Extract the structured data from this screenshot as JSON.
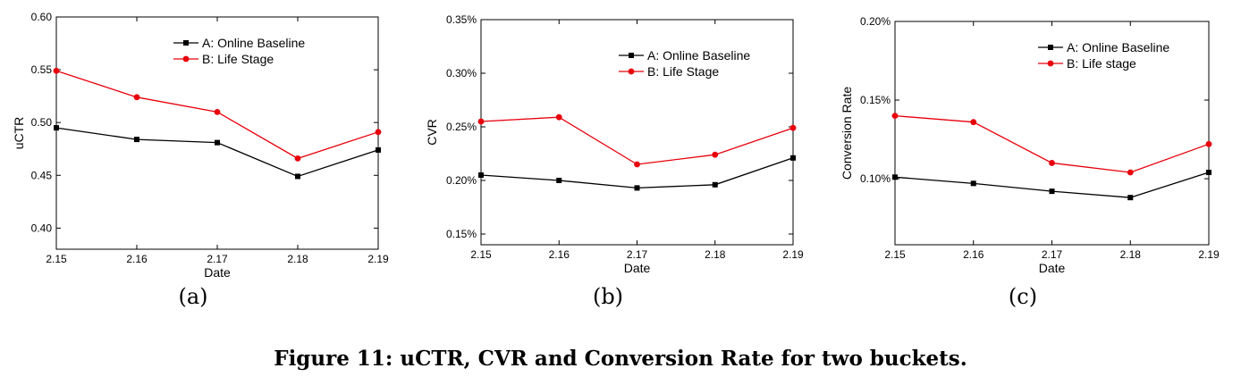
{
  "figure": {
    "caption": "Figure 11: uCTR, CVR and Conversion Rate for two buckets."
  },
  "chart_data": [
    {
      "type": "line",
      "sublabel": "(a)",
      "x": [
        "2.15",
        "2.16",
        "2.17",
        "2.18",
        "2.19"
      ],
      "xlabel": "Date",
      "ylabel": "uCTR",
      "ylim": [
        0.38,
        0.6
      ],
      "yticks": [
        0.4,
        0.45,
        0.5,
        0.55,
        0.6
      ],
      "ytick_labels": [
        "0.40",
        "0.45",
        "0.50",
        "0.55",
        "0.60"
      ],
      "legend_position": "top-right",
      "series": [
        {
          "name": "A: Online Baseline",
          "color": "#000000",
          "marker": "square",
          "values": [
            0.495,
            0.484,
            0.481,
            0.449,
            0.474
          ]
        },
        {
          "name": "B: Life Stage",
          "color": "#e8000b",
          "marker": "circle",
          "values": [
            0.549,
            0.524,
            0.51,
            0.466,
            0.491
          ]
        }
      ]
    },
    {
      "type": "line",
      "sublabel": "(b)",
      "x": [
        "2.15",
        "2.16",
        "2.17",
        "2.18",
        "2.19"
      ],
      "xlabel": "Date",
      "ylabel": "CVR",
      "ylim": [
        0.14,
        0.35
      ],
      "yticks": [
        0.15,
        0.2,
        0.25,
        0.3,
        0.35
      ],
      "ytick_labels": [
        "0.15%",
        "0.20%",
        "0.25%",
        "0.30%",
        "0.35%"
      ],
      "legend_position": "top-right",
      "series": [
        {
          "name": "A: Online Baseline",
          "color": "#000000",
          "marker": "square",
          "values": [
            0.205,
            0.2,
            0.193,
            0.196,
            0.221
          ]
        },
        {
          "name": "B: Life Stage",
          "color": "#e8000b",
          "marker": "circle",
          "values": [
            0.255,
            0.259,
            0.215,
            0.224,
            0.249
          ]
        }
      ]
    },
    {
      "type": "line",
      "sublabel": "(c)",
      "x": [
        "2.15",
        "2.16",
        "2.17",
        "2.18",
        "2.19"
      ],
      "xlabel": "Date",
      "ylabel": "Conversion Rate",
      "ylim": [
        0.058,
        0.2
      ],
      "yticks": [
        0.1,
        0.15,
        0.2
      ],
      "ytick_labels": [
        "0.10%",
        "0.15%",
        "0.20%"
      ],
      "legend_position": "top-right",
      "series": [
        {
          "name": "A: Online Baseline",
          "color": "#000000",
          "marker": "square",
          "values": [
            0.101,
            0.097,
            0.092,
            0.088,
            0.104
          ]
        },
        {
          "name": "B: Life stage",
          "color": "#e8000b",
          "marker": "circle",
          "values": [
            0.14,
            0.136,
            0.11,
            0.104,
            0.122
          ]
        }
      ]
    }
  ]
}
